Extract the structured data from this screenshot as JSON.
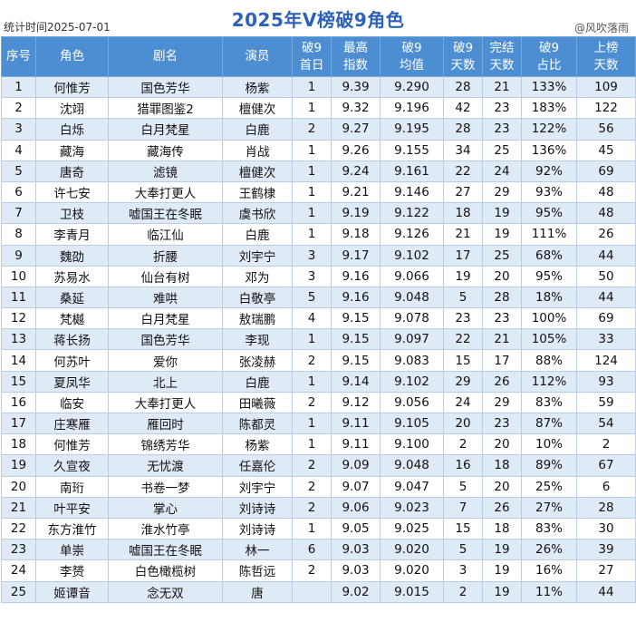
{
  "header": {
    "stat_time": "统计时间2025-07-01",
    "title": "2025年V榜破9角色",
    "credit": "@风吹落雨"
  },
  "columns": [
    [
      "序号"
    ],
    [
      "角色"
    ],
    [
      "剧名"
    ],
    [
      "演员"
    ],
    [
      "破9",
      "首日"
    ],
    [
      "最高",
      "指数"
    ],
    [
      "破9",
      "均值"
    ],
    [
      "破9",
      "天数"
    ],
    [
      "完结",
      "天数"
    ],
    [
      "破9",
      "占比"
    ],
    [
      "上榜",
      "天数"
    ]
  ],
  "rows": [
    [
      "1",
      "何惟芳",
      "国色芳华",
      "杨紫",
      "1",
      "9.39",
      "9.290",
      "28",
      "21",
      "133%",
      "109"
    ],
    [
      "2",
      "沈翊",
      "猎罪图鉴2",
      "檀健次",
      "1",
      "9.32",
      "9.196",
      "42",
      "23",
      "183%",
      "122"
    ],
    [
      "3",
      "白烁",
      "白月梵星",
      "白鹿",
      "2",
      "9.27",
      "9.195",
      "28",
      "23",
      "122%",
      "56"
    ],
    [
      "4",
      "藏海",
      "藏海传",
      "肖战",
      "1",
      "9.26",
      "9.155",
      "34",
      "25",
      "136%",
      "45"
    ],
    [
      "5",
      "唐奇",
      "滤镜",
      "檀健次",
      "1",
      "9.24",
      "9.161",
      "22",
      "24",
      "92%",
      "69"
    ],
    [
      "6",
      "许七安",
      "大奉打更人",
      "王鹤棣",
      "1",
      "9.21",
      "9.146",
      "27",
      "29",
      "93%",
      "48"
    ],
    [
      "7",
      "卫枝",
      "嘘国王在冬眠",
      "虞书欣",
      "1",
      "9.19",
      "9.122",
      "18",
      "19",
      "95%",
      "48"
    ],
    [
      "8",
      "李青月",
      "临江仙",
      "白鹿",
      "1",
      "9.18",
      "9.126",
      "21",
      "19",
      "111%",
      "26"
    ],
    [
      "9",
      "魏劭",
      "折腰",
      "刘宇宁",
      "3",
      "9.17",
      "9.102",
      "17",
      "25",
      "68%",
      "44"
    ],
    [
      "10",
      "苏易水",
      "仙台有树",
      "邓为",
      "3",
      "9.16",
      "9.066",
      "19",
      "20",
      "95%",
      "50"
    ],
    [
      "11",
      "桑延",
      "难哄",
      "白敬亭",
      "5",
      "9.16",
      "9.048",
      "5",
      "28",
      "18%",
      "44"
    ],
    [
      "12",
      "梵樾",
      "白月梵星",
      "敖瑞鹏",
      "4",
      "9.15",
      "9.078",
      "23",
      "23",
      "100%",
      "69"
    ],
    [
      "13",
      "蒋长扬",
      "国色芳华",
      "李现",
      "1",
      "9.15",
      "9.097",
      "22",
      "21",
      "105%",
      "33"
    ],
    [
      "14",
      "何苏叶",
      "爱你",
      "张凌赫",
      "2",
      "9.15",
      "9.083",
      "15",
      "17",
      "88%",
      "124"
    ],
    [
      "15",
      "夏凤华",
      "北上",
      "白鹿",
      "1",
      "9.14",
      "9.102",
      "29",
      "26",
      "112%",
      "93"
    ],
    [
      "16",
      "临安",
      "大奉打更人",
      "田曦薇",
      "2",
      "9.12",
      "9.056",
      "24",
      "29",
      "83%",
      "59"
    ],
    [
      "17",
      "庄寒雁",
      "雁回时",
      "陈都灵",
      "1",
      "9.11",
      "9.105",
      "20",
      "23",
      "87%",
      "54"
    ],
    [
      "18",
      "何惟芳",
      "锦绣芳华",
      "杨紫",
      "1",
      "9.11",
      "9.100",
      "2",
      "20",
      "10%",
      "2"
    ],
    [
      "19",
      "久宣夜",
      "无忧渡",
      "任嘉伦",
      "2",
      "9.09",
      "9.048",
      "16",
      "18",
      "89%",
      "67"
    ],
    [
      "20",
      "南珩",
      "书卷一梦",
      "刘宇宁",
      "2",
      "9.07",
      "9.047",
      "5",
      "20",
      "25%",
      "6"
    ],
    [
      "21",
      "叶平安",
      "掌心",
      "刘诗诗",
      "2",
      "9.06",
      "9.023",
      "7",
      "26",
      "27%",
      "28"
    ],
    [
      "22",
      "东方淮竹",
      "淮水竹亭",
      "刘诗诗",
      "1",
      "9.05",
      "9.025",
      "15",
      "18",
      "83%",
      "30"
    ],
    [
      "23",
      "单崇",
      "嘘国王在冬眠",
      "林一",
      "6",
      "9.03",
      "9.020",
      "5",
      "19",
      "26%",
      "39"
    ],
    [
      "24",
      "李赟",
      "白色橄榄树",
      "陈哲远",
      "2",
      "9.03",
      "9.020",
      "3",
      "19",
      "16%",
      "27"
    ],
    [
      "25",
      "姬谭音",
      "念无双",
      "唐",
      "",
      "9.02",
      "9.015",
      "2",
      "19",
      "11%",
      "44"
    ]
  ]
}
